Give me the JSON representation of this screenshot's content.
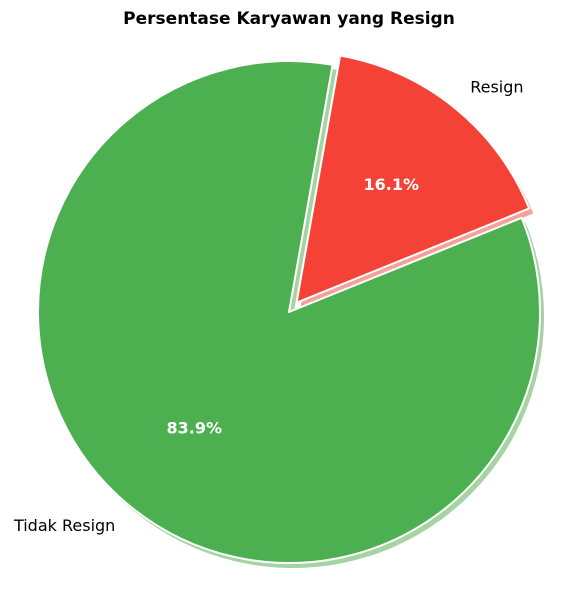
{
  "chart_data": {
    "type": "pie",
    "title": "Persentase Karyawan yang Resign",
    "slices": [
      {
        "label": "Resign",
        "value": 16.1,
        "pct_label": "16.1%",
        "color": "#F44336",
        "shadow_color": "#F4A19B",
        "exploded": true
      },
      {
        "label": "Tidak Resign",
        "value": 83.9,
        "pct_label": "83.9%",
        "color": "#4CAF50",
        "shadow_color": "#A5D3A3",
        "exploded": false
      }
    ],
    "start_angle_deg": 80,
    "direction": "clockwise",
    "shadow": true,
    "legend": "none"
  }
}
